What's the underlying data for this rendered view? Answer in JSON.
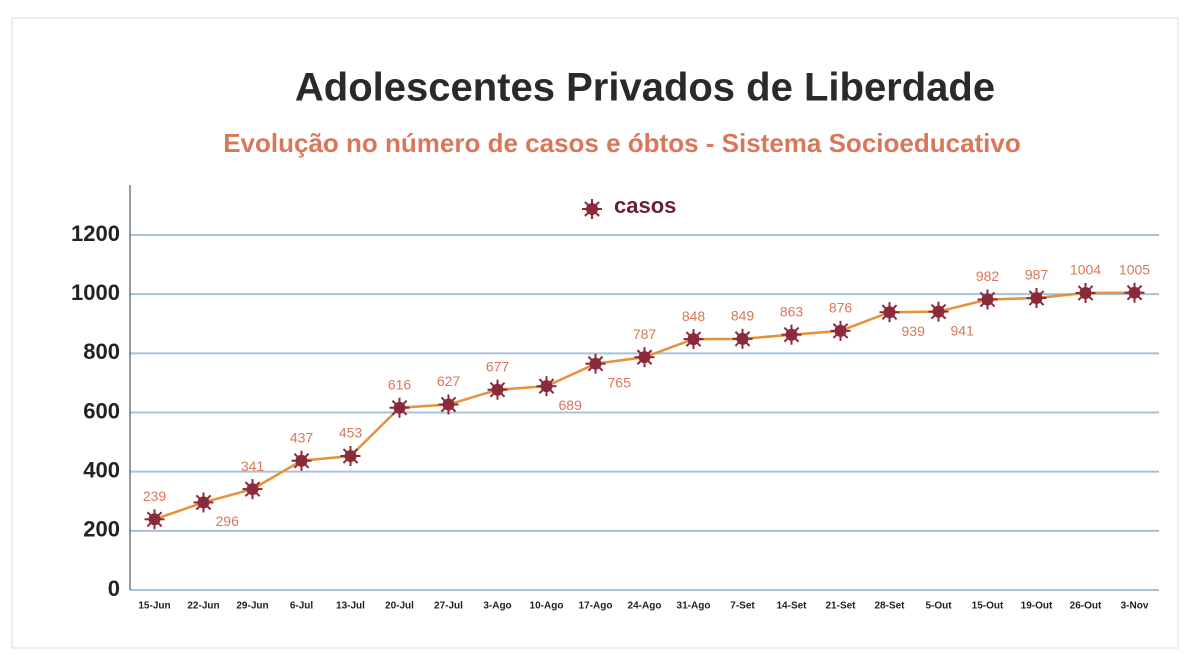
{
  "chart_data": {
    "type": "line",
    "title": "Adolescentes Privados de Liberdade",
    "subtitle": "Evolução no número de casos e óbtos - Sistema Socioeducativo",
    "categories": [
      "15-Jun",
      "22-Jun",
      "29-Jun",
      "6-Jul",
      "13-Jul",
      "20-Jul",
      "27-Jul",
      "3-Ago",
      "10-Ago",
      "17-Ago",
      "24-Ago",
      "31-Ago",
      "7-Set",
      "14-Set",
      "21-Set",
      "28-Set",
      "5-Out",
      "15-Out",
      "19-Out",
      "26-Out",
      "3-Nov"
    ],
    "series": [
      {
        "name": "casos",
        "color": "#e8903a",
        "marker_color": "#8b2a3a",
        "values": [
          239,
          296,
          341,
          437,
          453,
          616,
          627,
          677,
          689,
          765,
          787,
          848,
          849,
          863,
          876,
          939,
          941,
          982,
          987,
          1004,
          1005
        ]
      }
    ],
    "ylim": [
      0,
      1200
    ],
    "yticks": [
      0,
      200,
      400,
      600,
      800,
      1000,
      1200
    ],
    "grid": true,
    "legend": "top"
  }
}
